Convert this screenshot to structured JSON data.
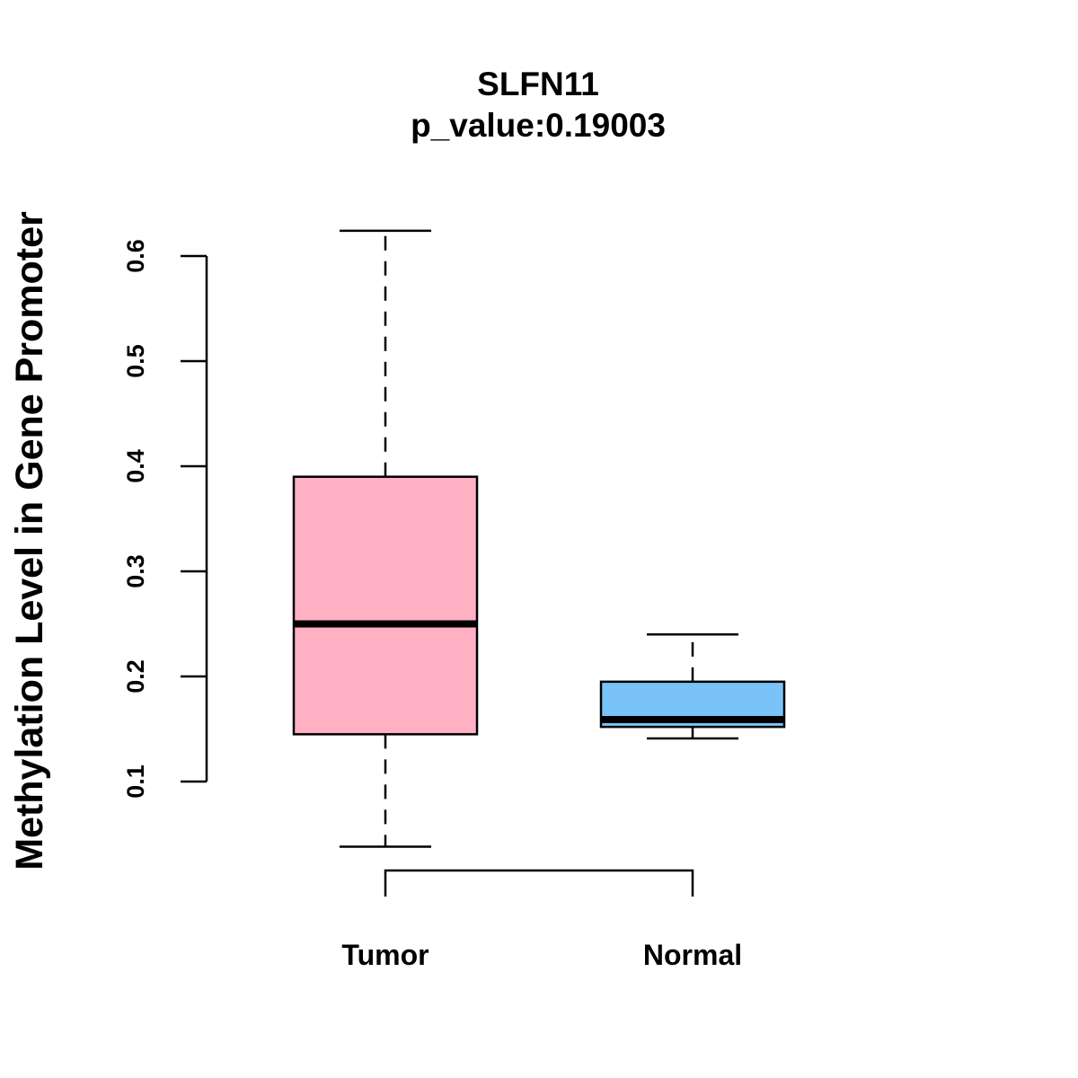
{
  "chart_data": {
    "type": "boxplot",
    "title": "SLFN11",
    "subtitle": "p_value:0.19003",
    "xlabel": "",
    "ylabel": "Methylation Level in Gene Promoter",
    "yticks": [
      "0.1",
      "0.2",
      "0.3",
      "0.4",
      "0.5",
      "0.6"
    ],
    "categories": [
      "Tumor",
      "Normal"
    ],
    "boxes": [
      {
        "category": "Tumor",
        "min": 0.038,
        "q1": 0.145,
        "median": 0.25,
        "q3": 0.39,
        "max": 0.624,
        "color": "#FFB1C3"
      },
      {
        "category": "Normal",
        "min": 0.141,
        "q1": 0.152,
        "median": 0.159,
        "q3": 0.195,
        "max": 0.24,
        "color": "#79C3F8"
      }
    ],
    "comparison_bracket": [
      "Tumor",
      "Normal"
    ],
    "grid": false,
    "legend": "none"
  }
}
